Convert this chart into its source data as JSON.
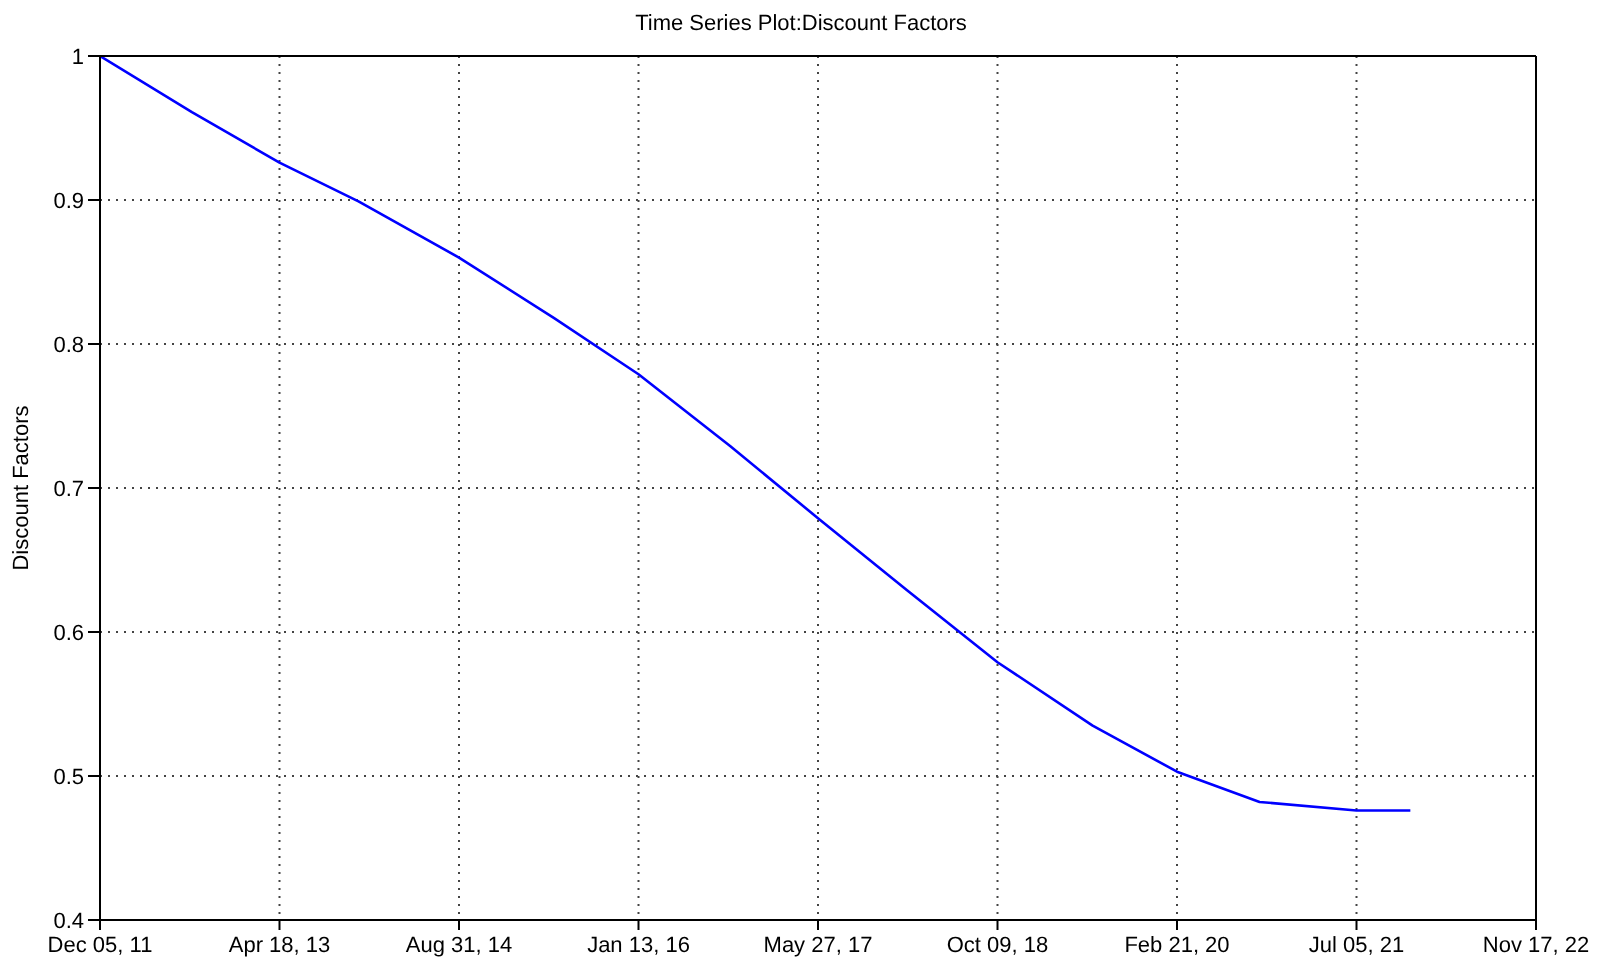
{
  "chart_data": {
    "type": "line",
    "title": "Time Series Plot:Discount Factors",
    "ylabel": "Discount Factors",
    "x": [
      "2011-12-05",
      "2012-08-17",
      "2013-04-18",
      "2013-11-24",
      "2014-08-31",
      "2015-05-23",
      "2016-01-13",
      "2016-09-25",
      "2017-05-27",
      "2018-01-30",
      "2018-10-09",
      "2019-07-01",
      "2020-02-21",
      "2020-10-08",
      "2021-07-05",
      "2021-12-02"
    ],
    "series": [
      {
        "color": "#0000ff",
        "values": [
          1.0,
          0.961,
          0.926,
          0.899,
          0.86,
          0.818,
          0.779,
          0.729,
          0.679,
          0.629,
          0.579,
          0.535,
          0.503,
          0.482,
          0.476,
          0.476
        ]
      }
    ],
    "xlim": [
      "2011-12-05",
      "2022-11-17"
    ],
    "xticks": [
      {
        "value": "2011-12-05",
        "label": "Dec 05, 11"
      },
      {
        "value": "2013-04-18",
        "label": "Apr 18, 13"
      },
      {
        "value": "2014-08-31",
        "label": "Aug 31, 14"
      },
      {
        "value": "2016-01-13",
        "label": "Jan 13, 16"
      },
      {
        "value": "2017-05-27",
        "label": "May 27, 17"
      },
      {
        "value": "2018-10-09",
        "label": "Oct 09, 18"
      },
      {
        "value": "2020-02-21",
        "label": "Feb 21, 20"
      },
      {
        "value": "2021-07-05",
        "label": "Jul 05, 21"
      },
      {
        "value": "2022-11-17",
        "label": "Nov 17, 22"
      }
    ],
    "ylim": [
      0.4,
      1
    ],
    "yticks": [
      0.4,
      0.5,
      0.6,
      0.7,
      0.8,
      0.9,
      1
    ],
    "grid": true,
    "marker": "none",
    "line_style": "solid"
  }
}
